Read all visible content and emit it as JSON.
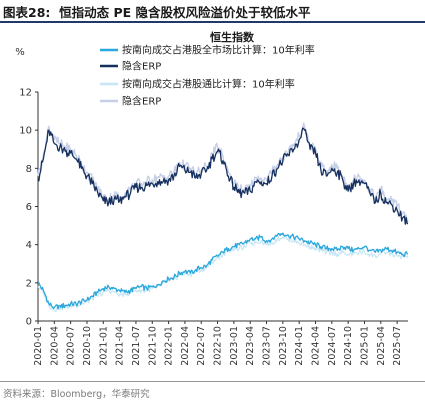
{
  "figure_label": "图表28:",
  "figure_title": "恒指动态 PE 隐含股权风险溢价处于较低水平",
  "source": "资料来源：Bloomberg，华泰研究",
  "colors": {
    "rp_all": "#2aa7dc",
    "erp_all": "#16305f",
    "rp_connect": "#c8e6f5",
    "erp_connect": "#c6cfe6"
  },
  "chart_data": {
    "type": "line",
    "title": "恒生指数",
    "ylabel": "%",
    "ylim": [
      0,
      12
    ],
    "yticks": [
      0,
      2,
      4,
      6,
      8,
      10,
      12
    ],
    "xlim": [
      "2020-01",
      "2025-09"
    ],
    "xticks": [
      "2020-01",
      "2020-04",
      "2020-07",
      "2020-10",
      "2021-01",
      "2021-04",
      "2021-07",
      "2021-10",
      "2022-01",
      "2022-04",
      "2022-07",
      "2022-10",
      "2023-01",
      "2023-04",
      "2023-07",
      "2023-10",
      "2024-01",
      "2024-04",
      "2024-07",
      "2024-10",
      "2025-01",
      "2025-04",
      "2025-07"
    ],
    "legend_position": "top-center",
    "grid": false,
    "series": [
      {
        "name": "按南向成交占港股全市场比计算：10年利率",
        "color_key": "rp_all",
        "points": [
          [
            "2020-01",
            2.0
          ],
          [
            "2020-02",
            1.6
          ],
          [
            "2020-03",
            0.9
          ],
          [
            "2020-04",
            0.7
          ],
          [
            "2020-05",
            0.8
          ],
          [
            "2020-06",
            0.8
          ],
          [
            "2020-07",
            0.9
          ],
          [
            "2020-08",
            0.9
          ],
          [
            "2020-09",
            1.0
          ],
          [
            "2020-10",
            1.1
          ],
          [
            "2020-11",
            1.3
          ],
          [
            "2020-12",
            1.5
          ],
          [
            "2021-01",
            1.7
          ],
          [
            "2021-02",
            1.8
          ],
          [
            "2021-03",
            1.7
          ],
          [
            "2021-04",
            1.6
          ],
          [
            "2021-05",
            1.5
          ],
          [
            "2021-06",
            1.6
          ],
          [
            "2021-07",
            1.7
          ],
          [
            "2021-08",
            1.8
          ],
          [
            "2021-09",
            1.7
          ],
          [
            "2021-10",
            1.8
          ],
          [
            "2021-11",
            1.9
          ],
          [
            "2021-12",
            2.1
          ],
          [
            "2022-01",
            2.2
          ],
          [
            "2022-02",
            2.3
          ],
          [
            "2022-03",
            2.5
          ],
          [
            "2022-04",
            2.6
          ],
          [
            "2022-05",
            2.5
          ],
          [
            "2022-06",
            2.7
          ],
          [
            "2022-07",
            2.8
          ],
          [
            "2022-08",
            2.9
          ],
          [
            "2022-09",
            3.2
          ],
          [
            "2022-10",
            3.4
          ],
          [
            "2022-11",
            3.6
          ],
          [
            "2022-12",
            3.8
          ],
          [
            "2023-01",
            3.9
          ],
          [
            "2023-02",
            4.0
          ],
          [
            "2023-03",
            4.1
          ],
          [
            "2023-04",
            4.3
          ],
          [
            "2023-05",
            4.3
          ],
          [
            "2023-06",
            4.4
          ],
          [
            "2023-07",
            4.2
          ],
          [
            "2023-08",
            4.3
          ],
          [
            "2023-09",
            4.5
          ],
          [
            "2023-10",
            4.6
          ],
          [
            "2023-11",
            4.5
          ],
          [
            "2023-12",
            4.4
          ],
          [
            "2024-01",
            4.3
          ],
          [
            "2024-02",
            4.2
          ],
          [
            "2024-03",
            4.1
          ],
          [
            "2024-04",
            4.0
          ],
          [
            "2024-05",
            3.9
          ],
          [
            "2024-06",
            3.8
          ],
          [
            "2024-07",
            3.8
          ],
          [
            "2024-08",
            3.7
          ],
          [
            "2024-09",
            3.9
          ],
          [
            "2024-10",
            3.8
          ],
          [
            "2024-11",
            3.7
          ],
          [
            "2024-12",
            3.8
          ],
          [
            "2025-01",
            3.9
          ],
          [
            "2025-02",
            3.7
          ],
          [
            "2025-03",
            3.6
          ],
          [
            "2025-04",
            3.7
          ],
          [
            "2025-05",
            3.8
          ],
          [
            "2025-06",
            3.7
          ],
          [
            "2025-07",
            3.6
          ],
          [
            "2025-08",
            3.5
          ],
          [
            "2025-09",
            3.5
          ]
        ]
      },
      {
        "name": "隐含ERP",
        "color_key": "erp_all",
        "points": [
          [
            "2020-01",
            7.4
          ],
          [
            "2020-02",
            8.5
          ],
          [
            "2020-03",
            10.0
          ],
          [
            "2020-04",
            9.3
          ],
          [
            "2020-05",
            9.1
          ],
          [
            "2020-06",
            8.9
          ],
          [
            "2020-07",
            8.8
          ],
          [
            "2020-08",
            8.5
          ],
          [
            "2020-09",
            8.0
          ],
          [
            "2020-10",
            7.6
          ],
          [
            "2020-11",
            7.2
          ],
          [
            "2020-12",
            6.7
          ],
          [
            "2021-01",
            6.3
          ],
          [
            "2021-02",
            6.2
          ],
          [
            "2021-03",
            6.4
          ],
          [
            "2021-04",
            6.3
          ],
          [
            "2021-05",
            6.5
          ],
          [
            "2021-06",
            6.7
          ],
          [
            "2021-07",
            7.0
          ],
          [
            "2021-08",
            7.0
          ],
          [
            "2021-09",
            7.1
          ],
          [
            "2021-10",
            7.2
          ],
          [
            "2021-11",
            7.3
          ],
          [
            "2021-12",
            7.3
          ],
          [
            "2022-01",
            7.4
          ],
          [
            "2022-02",
            7.6
          ],
          [
            "2022-03",
            8.1
          ],
          [
            "2022-04",
            7.9
          ],
          [
            "2022-05",
            7.8
          ],
          [
            "2022-06",
            7.5
          ],
          [
            "2022-07",
            7.7
          ],
          [
            "2022-08",
            7.9
          ],
          [
            "2022-09",
            8.5
          ],
          [
            "2022-10",
            8.9
          ],
          [
            "2022-11",
            8.4
          ],
          [
            "2022-12",
            7.6
          ],
          [
            "2023-01",
            7.0
          ],
          [
            "2023-02",
            6.7
          ],
          [
            "2023-03",
            6.7
          ],
          [
            "2023-04",
            6.8
          ],
          [
            "2023-05",
            7.3
          ],
          [
            "2023-06",
            7.3
          ],
          [
            "2023-07",
            7.2
          ],
          [
            "2023-08",
            7.6
          ],
          [
            "2023-09",
            8.0
          ],
          [
            "2023-10",
            8.4
          ],
          [
            "2023-11",
            8.7
          ],
          [
            "2023-12",
            9.0
          ],
          [
            "2024-01",
            9.5
          ],
          [
            "2024-02",
            10.0
          ],
          [
            "2024-03",
            9.0
          ],
          [
            "2024-04",
            8.8
          ],
          [
            "2024-05",
            7.9
          ],
          [
            "2024-06",
            7.6
          ],
          [
            "2024-07",
            8.0
          ],
          [
            "2024-08",
            7.8
          ],
          [
            "2024-09",
            7.4
          ],
          [
            "2024-10",
            6.8
          ],
          [
            "2024-11",
            7.2
          ],
          [
            "2024-12",
            7.4
          ],
          [
            "2025-01",
            7.2
          ],
          [
            "2025-02",
            6.7
          ],
          [
            "2025-03",
            6.2
          ],
          [
            "2025-04",
            6.7
          ],
          [
            "2025-05",
            6.2
          ],
          [
            "2025-06",
            6.1
          ],
          [
            "2025-07",
            5.8
          ],
          [
            "2025-08",
            5.4
          ],
          [
            "2025-09",
            5.1
          ]
        ]
      },
      {
        "name": "按南向成交占港股通比计算：10年利率",
        "color_key": "rp_connect",
        "points": [
          [
            "2020-01",
            1.8
          ],
          [
            "2020-02",
            1.5
          ],
          [
            "2020-03",
            0.8
          ],
          [
            "2020-04",
            0.6
          ],
          [
            "2020-05",
            0.7
          ],
          [
            "2020-06",
            0.7
          ],
          [
            "2020-07",
            0.8
          ],
          [
            "2020-08",
            0.8
          ],
          [
            "2020-09",
            0.9
          ],
          [
            "2020-10",
            1.0
          ],
          [
            "2020-11",
            1.2
          ],
          [
            "2020-12",
            1.3
          ],
          [
            "2021-01",
            1.5
          ],
          [
            "2021-02",
            1.6
          ],
          [
            "2021-03",
            1.5
          ],
          [
            "2021-04",
            1.4
          ],
          [
            "2021-05",
            1.4
          ],
          [
            "2021-06",
            1.5
          ],
          [
            "2021-07",
            1.6
          ],
          [
            "2021-08",
            1.6
          ],
          [
            "2021-09",
            1.6
          ],
          [
            "2021-10",
            1.7
          ],
          [
            "2021-11",
            1.8
          ],
          [
            "2021-12",
            2.0
          ],
          [
            "2022-01",
            2.1
          ],
          [
            "2022-02",
            2.2
          ],
          [
            "2022-03",
            2.4
          ],
          [
            "2022-04",
            2.5
          ],
          [
            "2022-05",
            2.4
          ],
          [
            "2022-06",
            2.6
          ],
          [
            "2022-07",
            2.7
          ],
          [
            "2022-08",
            2.8
          ],
          [
            "2022-09",
            3.1
          ],
          [
            "2022-10",
            3.3
          ],
          [
            "2022-11",
            3.5
          ],
          [
            "2022-12",
            3.7
          ],
          [
            "2023-01",
            3.8
          ],
          [
            "2023-02",
            3.8
          ],
          [
            "2023-03",
            3.9
          ],
          [
            "2023-04",
            4.1
          ],
          [
            "2023-05",
            4.1
          ],
          [
            "2023-06",
            4.2
          ],
          [
            "2023-07",
            4.0
          ],
          [
            "2023-08",
            4.1
          ],
          [
            "2023-09",
            4.3
          ],
          [
            "2023-10",
            4.4
          ],
          [
            "2023-11",
            4.3
          ],
          [
            "2023-12",
            4.2
          ],
          [
            "2024-01",
            4.1
          ],
          [
            "2024-02",
            4.0
          ],
          [
            "2024-03",
            3.9
          ],
          [
            "2024-04",
            3.8
          ],
          [
            "2024-05",
            3.7
          ],
          [
            "2024-06",
            3.6
          ],
          [
            "2024-07",
            3.6
          ],
          [
            "2024-08",
            3.5
          ],
          [
            "2024-09",
            3.6
          ],
          [
            "2024-10",
            3.5
          ],
          [
            "2024-11",
            3.5
          ],
          [
            "2024-12",
            3.6
          ],
          [
            "2025-01",
            3.6
          ],
          [
            "2025-02",
            3.5
          ],
          [
            "2025-03",
            3.4
          ],
          [
            "2025-04",
            3.5
          ],
          [
            "2025-05",
            3.6
          ],
          [
            "2025-06",
            3.5
          ],
          [
            "2025-07",
            3.4
          ],
          [
            "2025-08",
            3.4
          ],
          [
            "2025-09",
            3.3
          ]
        ]
      },
      {
        "name": "隐含ERP",
        "color_key": "erp_connect",
        "points": [
          [
            "2020-01",
            7.6
          ],
          [
            "2020-02",
            8.7
          ],
          [
            "2020-03",
            10.2
          ],
          [
            "2020-04",
            9.5
          ],
          [
            "2020-05",
            9.3
          ],
          [
            "2020-06",
            9.1
          ],
          [
            "2020-07",
            9.0
          ],
          [
            "2020-08",
            8.7
          ],
          [
            "2020-09",
            8.2
          ],
          [
            "2020-10",
            7.8
          ],
          [
            "2020-11",
            7.4
          ],
          [
            "2020-12",
            6.9
          ],
          [
            "2021-01",
            6.5
          ],
          [
            "2021-02",
            6.4
          ],
          [
            "2021-03",
            6.6
          ],
          [
            "2021-04",
            6.5
          ],
          [
            "2021-05",
            6.7
          ],
          [
            "2021-06",
            6.9
          ],
          [
            "2021-07",
            7.2
          ],
          [
            "2021-08",
            7.2
          ],
          [
            "2021-09",
            7.3
          ],
          [
            "2021-10",
            7.4
          ],
          [
            "2021-11",
            7.5
          ],
          [
            "2021-12",
            7.5
          ],
          [
            "2022-01",
            7.6
          ],
          [
            "2022-02",
            7.8
          ],
          [
            "2022-03",
            8.3
          ],
          [
            "2022-04",
            8.1
          ],
          [
            "2022-05",
            8.0
          ],
          [
            "2022-06",
            7.7
          ],
          [
            "2022-07",
            7.9
          ],
          [
            "2022-08",
            8.1
          ],
          [
            "2022-09",
            8.7
          ],
          [
            "2022-10",
            9.1
          ],
          [
            "2022-11",
            8.6
          ],
          [
            "2022-12",
            7.8
          ],
          [
            "2023-01",
            7.2
          ],
          [
            "2023-02",
            6.9
          ],
          [
            "2023-03",
            6.9
          ],
          [
            "2023-04",
            7.0
          ],
          [
            "2023-05",
            7.5
          ],
          [
            "2023-06",
            7.5
          ],
          [
            "2023-07",
            7.4
          ],
          [
            "2023-08",
            7.8
          ],
          [
            "2023-09",
            8.2
          ],
          [
            "2023-10",
            8.6
          ],
          [
            "2023-11",
            8.9
          ],
          [
            "2023-12",
            9.2
          ],
          [
            "2024-01",
            9.7
          ],
          [
            "2024-02",
            10.2
          ],
          [
            "2024-03",
            9.2
          ],
          [
            "2024-04",
            9.0
          ],
          [
            "2024-05",
            8.1
          ],
          [
            "2024-06",
            7.8
          ],
          [
            "2024-07",
            8.2
          ],
          [
            "2024-08",
            8.0
          ],
          [
            "2024-09",
            7.6
          ],
          [
            "2024-10",
            7.0
          ],
          [
            "2024-11",
            7.4
          ],
          [
            "2024-12",
            7.6
          ],
          [
            "2025-01",
            7.4
          ],
          [
            "2025-02",
            6.9
          ],
          [
            "2025-03",
            6.4
          ],
          [
            "2025-04",
            6.9
          ],
          [
            "2025-05",
            6.4
          ],
          [
            "2025-06",
            6.3
          ],
          [
            "2025-07",
            6.0
          ],
          [
            "2025-08",
            5.6
          ],
          [
            "2025-09",
            5.3
          ]
        ]
      }
    ]
  }
}
